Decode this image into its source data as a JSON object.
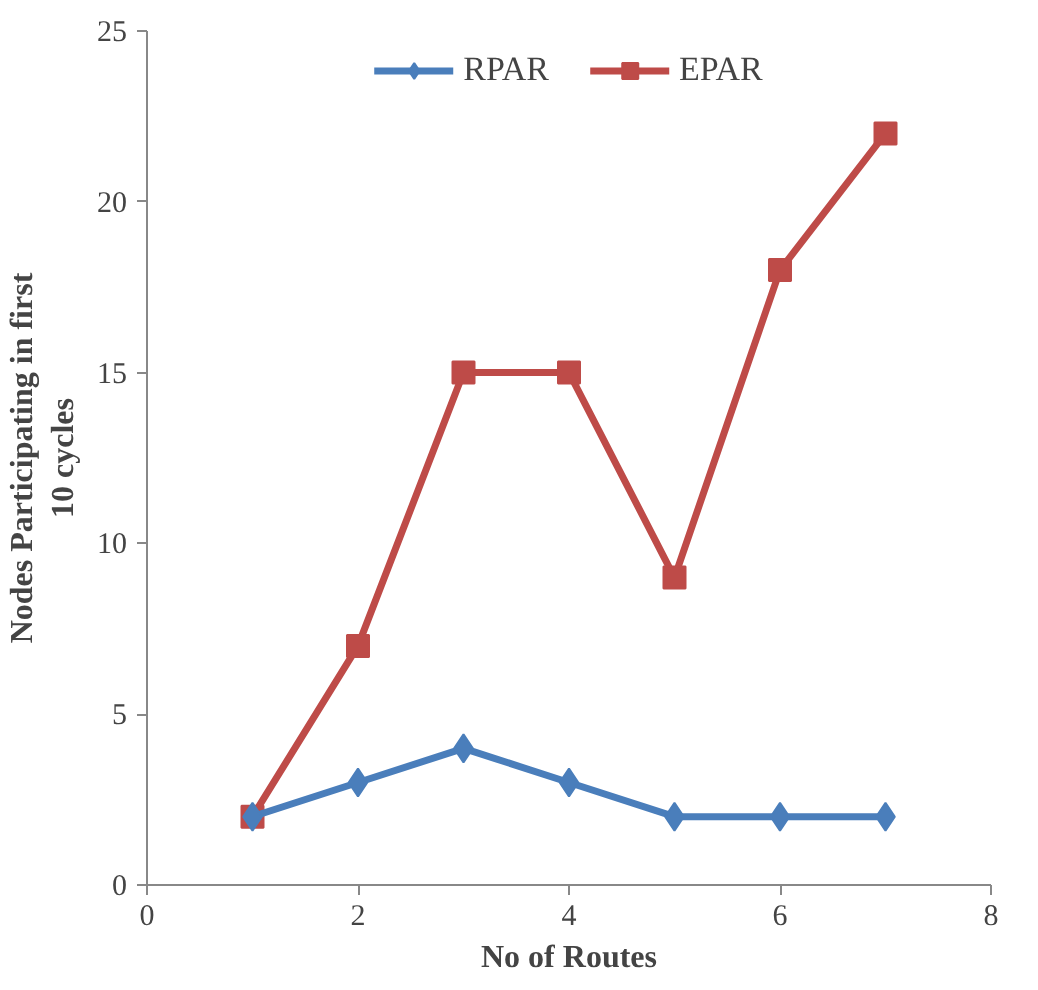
{
  "chart_data": {
    "type": "line",
    "xlabel": "No of Routes",
    "ylabel": "Nodes Participating in first 10 cycles",
    "x": [
      1,
      2,
      3,
      4,
      5,
      6,
      7
    ],
    "series": [
      {
        "name": "RPAR",
        "color": "#4a7ebb",
        "marker": "diamond",
        "values": [
          2,
          3,
          4,
          3,
          2,
          2,
          2
        ]
      },
      {
        "name": "EPAR",
        "color": "#be4b48",
        "marker": "square",
        "values": [
          2,
          7,
          15,
          15,
          9,
          18,
          22
        ]
      }
    ],
    "xlim": [
      0,
      8
    ],
    "xticks": [
      0,
      2,
      4,
      6,
      8
    ],
    "ylim": [
      0,
      25
    ],
    "yticks": [
      0,
      5,
      10,
      15,
      20,
      25
    ],
    "grid": false,
    "legend": "top",
    "line_style": "solid"
  }
}
